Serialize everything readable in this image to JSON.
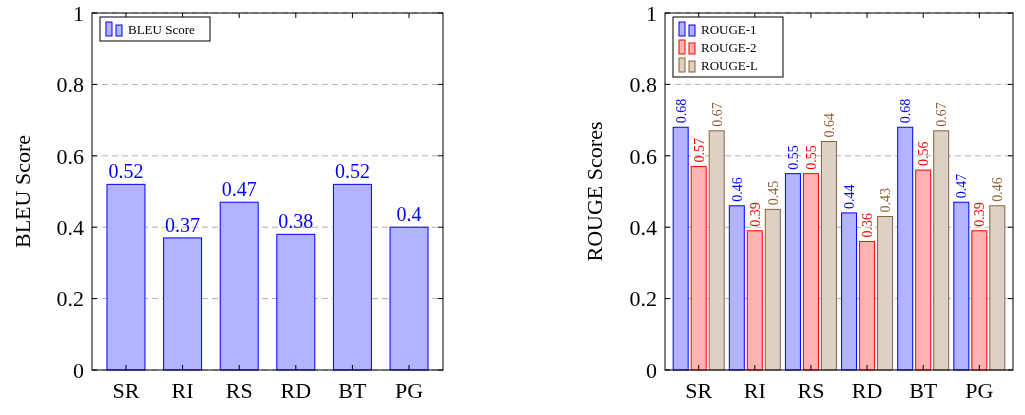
{
  "chart_data": [
    {
      "type": "bar",
      "ylabel": "BLEU Score",
      "categories": [
        "SR",
        "RI",
        "RS",
        "RD",
        "BT",
        "PG"
      ],
      "series": [
        {
          "name": "BLEU Score",
          "color": "#0000ff",
          "values": [
            0.52,
            0.37,
            0.47,
            0.38,
            0.52,
            0.4
          ]
        }
      ],
      "ylim": [
        0,
        1
      ],
      "yticks": [
        0,
        0.2,
        0.4,
        0.6,
        0.8,
        1
      ],
      "grid": "y",
      "legend": "top left",
      "data_labels": true
    },
    {
      "type": "bar",
      "ylabel": "ROUGE Scores",
      "categories": [
        "SR",
        "RI",
        "RS",
        "RD",
        "BT",
        "PG"
      ],
      "series": [
        {
          "name": "ROUGE-1",
          "color": "#0000ff",
          "values": [
            0.68,
            0.46,
            0.55,
            0.44,
            0.68,
            0.47
          ]
        },
        {
          "name": "ROUGE-2",
          "color": "#ff0000",
          "values": [
            0.57,
            0.39,
            0.55,
            0.36,
            0.56,
            0.39
          ]
        },
        {
          "name": "ROUGE-L",
          "color": "#8c6239",
          "values": [
            0.67,
            0.45,
            0.64,
            0.43,
            0.67,
            0.46
          ]
        }
      ],
      "ylim": [
        0,
        1
      ],
      "yticks": [
        0,
        0.2,
        0.4,
        0.6,
        0.8,
        1
      ],
      "grid": "y",
      "legend": "top left",
      "data_labels": true
    }
  ]
}
